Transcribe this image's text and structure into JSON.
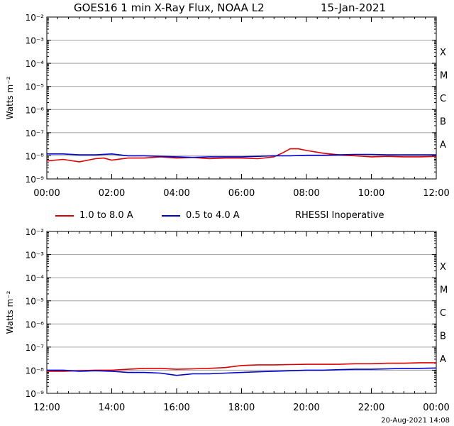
{
  "title": "GOES16 1 min X-Ray Flux, NOAA L2",
  "date": "15-Jan-2021",
  "footer": "20-Aug-2021 14:08",
  "legend": {
    "long": "1.0 to 8.0 A",
    "short": "0.5 to 4.0 A",
    "note": "RHESSI Inoperative"
  },
  "colors": {
    "long": "#dd0000",
    "short": "#0000cc",
    "grid": "#a0a0a0"
  },
  "chart_data": [
    {
      "type": "line",
      "ylabel": "Watts m⁻²",
      "yscale": "log",
      "ylim": [
        1e-09,
        0.01
      ],
      "ytick_labels": [
        "10⁻⁹",
        "10⁻⁸",
        "10⁻⁷",
        "10⁻⁶",
        "10⁻⁵",
        "10⁻⁴",
        "10⁻³",
        "10⁻²"
      ],
      "flare_classes": [
        "A",
        "B",
        "C",
        "M",
        "X"
      ],
      "xlim_hours": [
        0,
        12
      ],
      "x_tick_labels": [
        "00:00",
        "02:00",
        "04:00",
        "06:00",
        "08:00",
        "10:00",
        "12:00"
      ],
      "grid": true,
      "series": [
        {
          "name": "1.0 to 8.0 A",
          "x": [
            0,
            0.5,
            1,
            1.5,
            1.75,
            2,
            2.5,
            3,
            3.5,
            4,
            4.5,
            5,
            5.5,
            6,
            6.5,
            7,
            7.25,
            7.5,
            7.75,
            8,
            8.5,
            9,
            9.5,
            10,
            10.5,
            11,
            11.5,
            12
          ],
          "y": [
            6e-09,
            7e-09,
            5.5e-09,
            7.5e-09,
            8e-09,
            6.5e-09,
            8e-09,
            8e-09,
            9e-09,
            8e-09,
            8.5e-09,
            7.5e-09,
            8e-09,
            8e-09,
            7.5e-09,
            9e-09,
            1.3e-08,
            2e-08,
            2e-08,
            1.7e-08,
            1.3e-08,
            1.1e-08,
            1e-08,
            9e-09,
            9.5e-09,
            9e-09,
            9e-09,
            9.5e-09
          ]
        },
        {
          "name": "0.5 to 4.0 A",
          "x": [
            0,
            0.5,
            1,
            1.5,
            2,
            2.5,
            3,
            3.5,
            4,
            4.5,
            5,
            5.5,
            6,
            6.5,
            7,
            7.5,
            8,
            8.5,
            9,
            9.5,
            10,
            10.5,
            11,
            11.5,
            12
          ],
          "y": [
            1.2e-08,
            1.2e-08,
            1.1e-08,
            1.1e-08,
            1.2e-08,
            1e-08,
            1e-08,
            9.5e-09,
            9e-09,
            8.5e-09,
            9e-09,
            9e-09,
            9e-09,
            9.5e-09,
            1e-08,
            1e-08,
            1.05e-08,
            1.05e-08,
            1.1e-08,
            1.15e-08,
            1.15e-08,
            1.1e-08,
            1.1e-08,
            1.1e-08,
            1.1e-08
          ]
        }
      ]
    },
    {
      "type": "line",
      "ylabel": "Watts m⁻²",
      "yscale": "log",
      "ylim": [
        1e-09,
        0.01
      ],
      "ytick_labels": [
        "10⁻⁹",
        "10⁻⁸",
        "10⁻⁷",
        "10⁻⁶",
        "10⁻⁵",
        "10⁻⁴",
        "10⁻³",
        "10⁻²"
      ],
      "flare_classes": [
        "A",
        "B",
        "C",
        "M",
        "X"
      ],
      "xlim_hours": [
        12,
        24
      ],
      "x_tick_labels": [
        "12:00",
        "14:00",
        "16:00",
        "18:00",
        "20:00",
        "22:00",
        "00:00"
      ],
      "grid": true,
      "series": [
        {
          "name": "1.0 to 8.0 A",
          "x": [
            12,
            12.5,
            13,
            13.5,
            14,
            14.5,
            15,
            15.5,
            16,
            16.5,
            17,
            17.5,
            18,
            18.5,
            19,
            19.5,
            20,
            20.5,
            21,
            21.5,
            22,
            22.5,
            23,
            23.5,
            24
          ],
          "y": [
            9e-09,
            9e-09,
            9.5e-09,
            1e-08,
            1e-08,
            1.1e-08,
            1.2e-08,
            1.2e-08,
            1.1e-08,
            1.15e-08,
            1.2e-08,
            1.3e-08,
            1.6e-08,
            1.7e-08,
            1.7e-08,
            1.75e-08,
            1.8e-08,
            1.8e-08,
            1.8e-08,
            1.9e-08,
            1.9e-08,
            2e-08,
            2e-08,
            2.1e-08,
            2.1e-08
          ]
        },
        {
          "name": "0.5 to 4.0 A",
          "x": [
            12,
            12.5,
            13,
            13.5,
            14,
            14.5,
            15,
            15.5,
            16,
            16.5,
            17,
            17.5,
            18,
            18.5,
            19,
            19.5,
            20,
            20.5,
            21,
            21.5,
            22,
            22.5,
            23,
            23.5,
            24
          ],
          "y": [
            1e-08,
            1e-08,
            9e-09,
            9.5e-09,
            9e-09,
            8e-09,
            8e-09,
            7.5e-09,
            6e-09,
            7e-09,
            7e-09,
            7.5e-09,
            8e-09,
            8.5e-09,
            9e-09,
            9.5e-09,
            1e-08,
            1e-08,
            1.05e-08,
            1.1e-08,
            1.1e-08,
            1.15e-08,
            1.2e-08,
            1.2e-08,
            1.25e-08
          ]
        }
      ]
    }
  ]
}
